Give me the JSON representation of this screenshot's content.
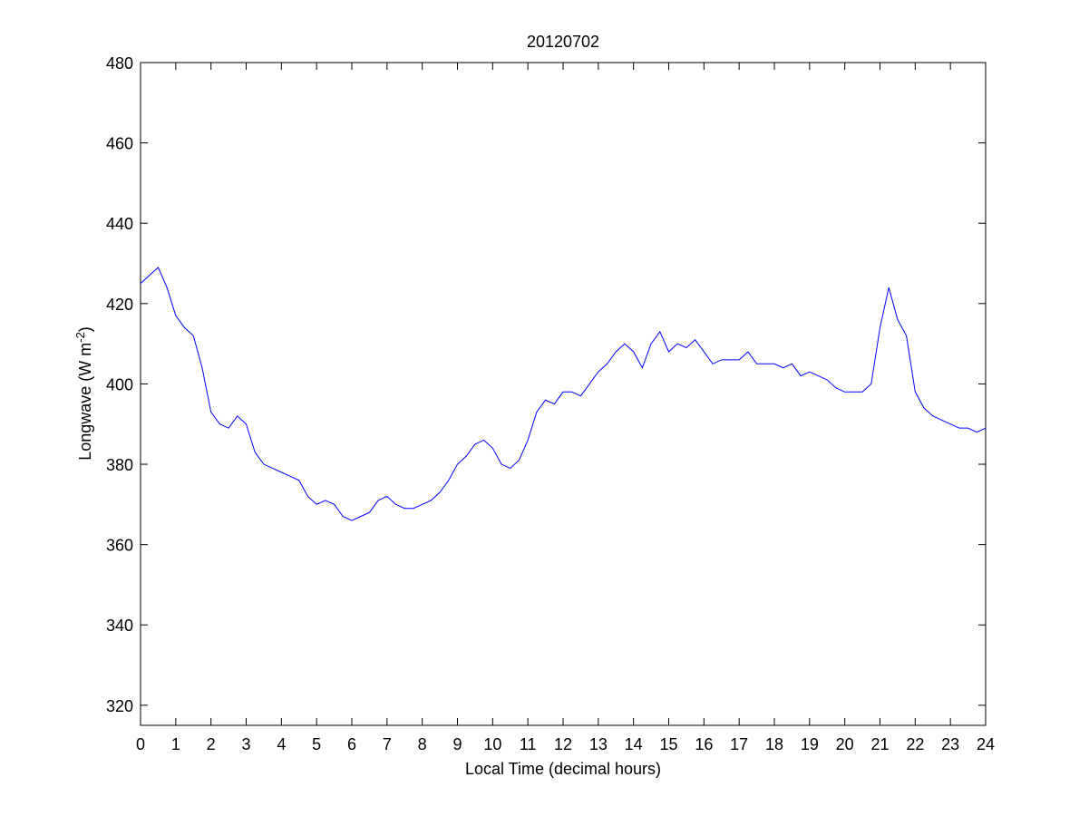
{
  "chart_data": {
    "type": "line",
    "title": "20120702",
    "xlabel": "Local Time (decimal hours)",
    "ylabel": {
      "text": "Longwave (W m",
      "sup": "-2",
      "end": ")"
    },
    "x": [
      0,
      0.25,
      0.5,
      0.75,
      1,
      1.25,
      1.5,
      1.75,
      2,
      2.25,
      2.5,
      2.75,
      3,
      3.25,
      3.5,
      3.75,
      4,
      4.25,
      4.5,
      4.75,
      5,
      5.25,
      5.5,
      5.75,
      6,
      6.25,
      6.5,
      6.75,
      7,
      7.25,
      7.5,
      7.75,
      8,
      8.25,
      8.5,
      8.75,
      9,
      9.25,
      9.5,
      9.75,
      10,
      10.25,
      10.5,
      10.75,
      11,
      11.25,
      11.5,
      11.75,
      12,
      12.25,
      12.5,
      12.75,
      13,
      13.25,
      13.5,
      13.75,
      14,
      14.25,
      14.5,
      14.75,
      15,
      15.25,
      15.5,
      15.75,
      16,
      16.25,
      16.5,
      16.75,
      17,
      17.25,
      17.5,
      17.75,
      18,
      18.25,
      18.5,
      18.75,
      19,
      19.25,
      19.5,
      19.75,
      20,
      20.25,
      20.5,
      20.75,
      21,
      21.25,
      21.5,
      21.75,
      22,
      22.25,
      22.5,
      22.75,
      23,
      23.25,
      23.5,
      23.75,
      24
    ],
    "series": [
      {
        "name": "Longwave",
        "color": "#0000ff",
        "values": [
          425,
          427,
          429,
          424,
          417,
          414,
          412,
          404,
          393,
          390,
          389,
          392,
          390,
          383,
          380,
          379,
          378,
          377,
          376,
          372,
          370,
          371,
          370,
          367,
          366,
          367,
          368,
          371,
          372,
          370,
          369,
          369,
          370,
          371,
          373,
          376,
          380,
          382,
          385,
          386,
          384,
          380,
          379,
          381,
          386,
          393,
          396,
          395,
          398,
          398,
          397,
          400,
          403,
          405,
          408,
          410,
          408,
          404,
          410,
          413,
          408,
          410,
          409,
          411,
          408,
          405,
          406,
          406,
          406,
          408,
          405,
          405,
          405,
          404,
          405,
          402,
          403,
          402,
          401,
          399,
          398,
          398,
          398,
          400,
          414,
          424,
          416,
          412,
          398,
          394,
          392,
          391,
          390,
          389,
          389,
          388,
          389
        ]
      }
    ],
    "xlim": [
      0,
      24
    ],
    "ylim": [
      315,
      480
    ],
    "xticks": [
      0,
      1,
      2,
      3,
      4,
      5,
      6,
      7,
      8,
      9,
      10,
      11,
      12,
      13,
      14,
      15,
      16,
      17,
      18,
      19,
      20,
      21,
      22,
      23,
      24
    ],
    "yticks": [
      320,
      340,
      360,
      380,
      400,
      420,
      440,
      460,
      480
    ]
  }
}
